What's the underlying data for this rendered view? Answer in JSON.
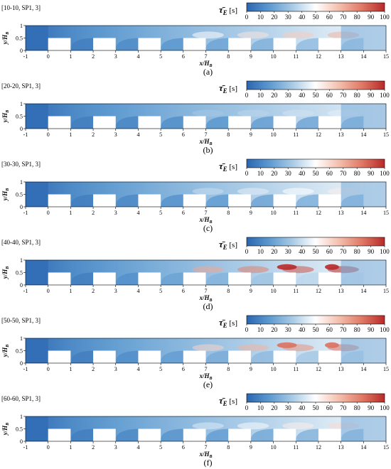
{
  "figure": {
    "colorbar": {
      "label_symbol": "τ̄",
      "label_sub": "E",
      "label_unit": "[s]",
      "ticks": [
        "0",
        "10",
        "20",
        "30",
        "40",
        "50",
        "60",
        "70",
        "80",
        "90",
        "100"
      ],
      "range": [
        0,
        100
      ],
      "colormap": [
        "#2a66b0",
        "#5e9ad0",
        "#a9cbe6",
        "#ffffff",
        "#f4c0ae",
        "#e07a66",
        "#b82a2a"
      ]
    },
    "axes": {
      "xlabel_main": "x/H",
      "xlabel_sub": "B",
      "ylabel_main": "y/H",
      "ylabel_sub": "B",
      "xticks": [
        "-1",
        "0",
        "1",
        "2",
        "3",
        "4",
        "5",
        "6",
        "7",
        "8",
        "9",
        "10",
        "11",
        "12",
        "13",
        "14",
        "15"
      ],
      "yticks": [
        "0",
        "0.5",
        "1"
      ],
      "xlim": [
        -1,
        15
      ],
      "ylim": [
        0,
        1
      ]
    }
  },
  "chart_data": [
    {
      "type": "heatmap",
      "panel_tag": "[10-10, SP1, 3]",
      "caption": "(a)",
      "peak_tau_E": 70
    },
    {
      "type": "heatmap",
      "panel_tag": "[20-20, SP1, 3]",
      "caption": "(b)",
      "peak_tau_E": 45
    },
    {
      "type": "heatmap",
      "panel_tag": "[30-30, SP1, 3]",
      "caption": "(c)",
      "peak_tau_E": 55
    },
    {
      "type": "heatmap",
      "panel_tag": "[40-40, SP1, 3]",
      "caption": "(d)",
      "peak_tau_E": 100
    },
    {
      "type": "heatmap",
      "panel_tag": "[50-50, SP1, 3]",
      "caption": "(e)",
      "peak_tau_E": 85
    },
    {
      "type": "heatmap",
      "panel_tag": "[60-60, SP1, 3]",
      "caption": "(f)",
      "peak_tau_E": 60
    }
  ]
}
